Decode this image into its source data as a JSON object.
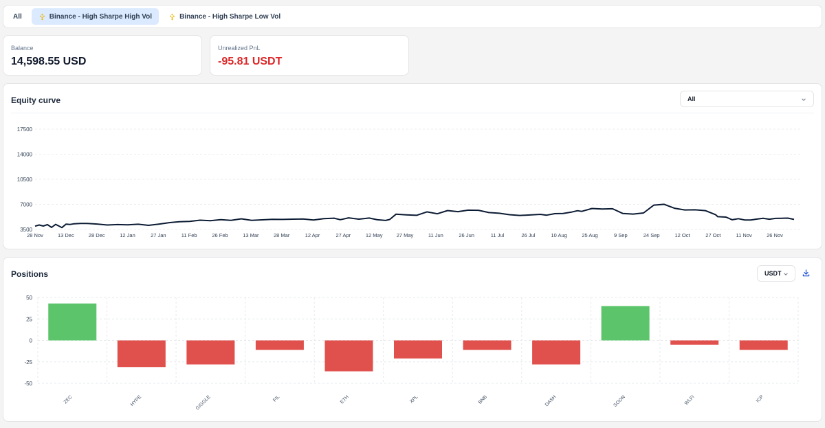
{
  "tabs": [
    {
      "label": "All",
      "icon": "",
      "active": false
    },
    {
      "label": "Binance - High Sharpe High Vol",
      "icon": "binance-icon",
      "active": true
    },
    {
      "label": "Binance - High Sharpe Low Vol",
      "icon": "binance-icon",
      "active": false
    }
  ],
  "balance": {
    "label": "Balance",
    "value": "14,598.55 USD"
  },
  "pnl": {
    "label": "Unrealized PnL",
    "value": "-95.81 USDT",
    "color": "#dc2626"
  },
  "equity": {
    "title": "Equity curve",
    "range_selected": "All"
  },
  "positions": {
    "title": "Positions",
    "currency_selected": "USDT",
    "download_icon": "download-icon"
  },
  "colors": {
    "accent_tab": "#dbeafe",
    "line": "#0b1b33",
    "positive": "#5cc46a",
    "negative": "#e0514d"
  },
  "chart_data": [
    {
      "type": "line",
      "title": "Equity curve",
      "xlabel": "",
      "ylabel": "",
      "ylim": [
        3500,
        17500
      ],
      "yticks": [
        3500,
        7000,
        10500,
        14000,
        17500
      ],
      "xticks": [
        "28 Nov",
        "13 Dec",
        "28 Dec",
        "12 Jan",
        "27 Jan",
        "11 Feb",
        "26 Feb",
        "13 Mar",
        "28 Mar",
        "12 Apr",
        "27 Apr",
        "12 May",
        "27 May",
        "11 Jun",
        "26 Jun",
        "11 Jul",
        "26 Jul",
        "10 Aug",
        "25 Aug",
        "9 Sep",
        "24 Sep",
        "12 Oct",
        "27 Oct",
        "11 Nov",
        "26 Nov"
      ],
      "x_day": [
        0,
        2,
        4,
        6,
        8,
        10,
        13,
        15,
        17,
        19,
        22,
        25,
        30,
        35,
        40,
        45,
        50,
        55,
        60,
        65,
        70,
        75,
        80,
        85,
        90,
        95,
        100,
        105,
        110,
        115,
        120,
        125,
        130,
        135,
        140,
        145,
        148,
        152,
        157,
        162,
        166,
        170,
        172,
        175,
        180,
        185,
        190,
        195,
        200,
        205,
        210,
        215,
        220,
        225,
        230,
        235,
        240,
        245,
        248,
        252,
        256,
        260,
        263,
        265,
        270,
        275,
        280,
        285,
        290,
        295,
        300,
        305,
        310,
        315,
        320,
        325,
        330,
        331,
        335,
        338,
        341,
        344,
        347,
        350,
        353,
        356,
        359,
        362,
        365,
        368
      ],
      "values": [
        3960,
        4120,
        3980,
        4180,
        3790,
        4210,
        3760,
        4240,
        4200,
        4300,
        4330,
        4340,
        4260,
        4120,
        4180,
        4150,
        4230,
        4080,
        4250,
        4450,
        4580,
        4620,
        4790,
        4730,
        4860,
        4780,
        4990,
        4780,
        4840,
        4920,
        4900,
        4940,
        4960,
        4820,
        5010,
        5070,
        4860,
        5120,
        4940,
        5090,
        4850,
        4760,
        4900,
        5630,
        5540,
        5480,
        5950,
        5690,
        6140,
        5980,
        6190,
        6180,
        5860,
        5760,
        5560,
        5460,
        5520,
        5610,
        5490,
        5710,
        5730,
        5920,
        6120,
        6020,
        6420,
        6350,
        6390,
        5720,
        5650,
        5800,
        6890,
        7010,
        6460,
        6220,
        6240,
        6130,
        5550,
        5280,
        5230,
        4850,
        5010,
        4820,
        4820,
        4950,
        5050,
        4930,
        5040,
        5060,
        5080,
        4900
      ]
    },
    {
      "type": "bar",
      "title": "Positions",
      "categories": [
        "ZEC",
        "HYPE",
        "GIGGLE",
        "FIL",
        "ETH",
        "XPL",
        "BNB",
        "DASH",
        "SOON",
        "WLFI",
        "ICP"
      ],
      "values": [
        43,
        -31,
        -28,
        -11,
        -36,
        -21,
        -11,
        -28,
        40,
        -5,
        -11
      ],
      "ylim": [
        -50,
        50
      ],
      "yticks": [
        50,
        25,
        0,
        -25,
        -50
      ]
    }
  ]
}
